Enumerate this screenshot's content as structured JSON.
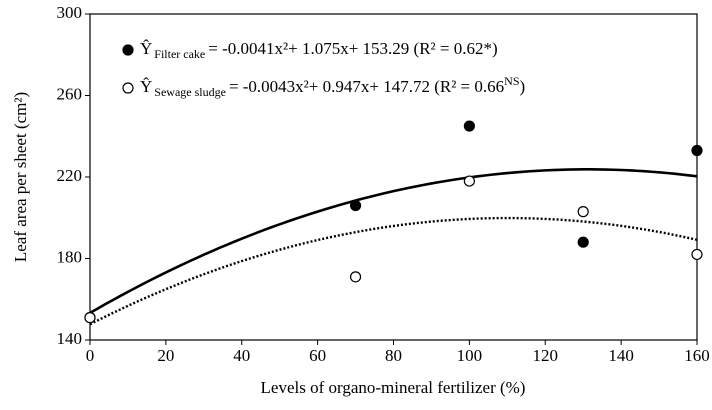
{
  "chart_data": {
    "type": "scatter",
    "x_label": "Levels of organo-mineral fertilizer (%)",
    "y_label": "Leaf area per sheet (cm²)",
    "xlim": [
      0,
      160
    ],
    "xticks": [
      0,
      20,
      40,
      60,
      80,
      100,
      120,
      140,
      160
    ],
    "ylim": [
      140,
      300
    ],
    "yticks": [
      140,
      180,
      220,
      260,
      300
    ],
    "series": [
      {
        "name": [
          "Ŷ",
          "Filter cake",
          "= -0.0041x²+ 1.075x+ 153.29 (R² = 0.62*)"
        ],
        "name_styles": [
          "",
          "sub",
          ""
        ],
        "color": "#000000",
        "marker": "filled",
        "line": "solid",
        "x": [
          0,
          70,
          100,
          130,
          160
        ],
        "values": [
          151,
          206,
          245,
          188,
          233
        ],
        "fit": {
          "a": -0.0041,
          "b": 1.075,
          "c": 153.29
        }
      },
      {
        "name": [
          "Ŷ",
          "Sewage sludge",
          "= -0.0043x²+ 0.947x+ 147.72 (R² = 0.66",
          "NS",
          ")"
        ],
        "name_styles": [
          "",
          "sub",
          "",
          "sup",
          ""
        ],
        "color": "#000000",
        "marker": "open",
        "line": "dotted",
        "x": [
          0,
          70,
          100,
          130,
          160
        ],
        "values": [
          151,
          171,
          218,
          203,
          182
        ],
        "fit": {
          "a": -0.0043,
          "b": 0.947,
          "c": 147.72
        }
      }
    ]
  }
}
